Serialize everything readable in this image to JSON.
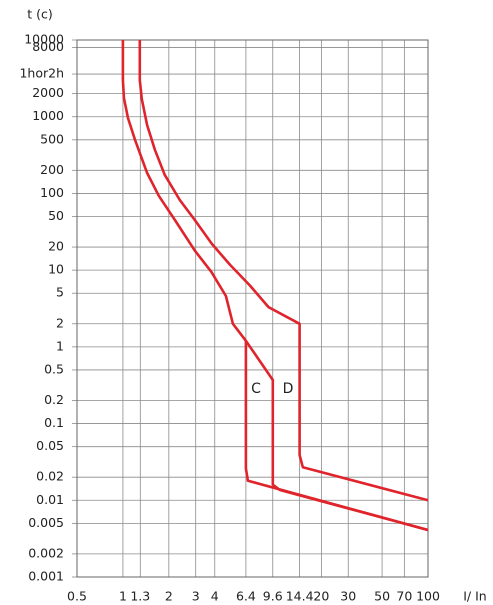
{
  "chart_data": {
    "type": "line",
    "y_label": "t (c)",
    "x_label": "I/ In",
    "log_x": true,
    "log_y": true,
    "grid": true,
    "xlim": [
      0.5,
      100
    ],
    "ylim": [
      0.001,
      10000
    ],
    "xticks": [
      0.5,
      1,
      1.3,
      2,
      3,
      4,
      6.4,
      9.6,
      14.4,
      20,
      30,
      50,
      70,
      100
    ],
    "yticks": [
      0.001,
      0.002,
      0.005,
      0.01,
      0.02,
      0.05,
      0.1,
      0.2,
      0.5,
      1,
      2,
      5,
      10,
      20,
      50,
      100,
      200,
      500,
      1000,
      2000,
      {
        "value": 3600,
        "label": "1hor2h"
      },
      8000,
      10000
    ],
    "series": [
      {
        "color": "#e0242c",
        "x": [
          1,
          1,
          1.015,
          1.08,
          1.2,
          1.44,
          1.72,
          2.19,
          2.96,
          3.8,
          4.73,
          5.26,
          6.4,
          9.6,
          9.6,
          10.7,
          100
        ],
        "y": [
          10000,
          3000,
          1760,
          960,
          500,
          185,
          93,
          45,
          18,
          9.5,
          4.6,
          2,
          1.2,
          0.37,
          0.016,
          0.0136,
          0.0041
        ]
      },
      {
        "color": "#e0242c",
        "x": [
          6.4,
          6.4,
          6.6,
          100
        ],
        "y": [
          1.2,
          0.026,
          0.018,
          0.0041
        ]
      },
      {
        "color": "#e0242c",
        "x": [
          1.29,
          1.29,
          1.33,
          1.44,
          1.62,
          1.88,
          2.36,
          2.96,
          3.83,
          5.04,
          6.8,
          9,
          14.4,
          14.4,
          15.1,
          100
        ],
        "y": [
          10000,
          3000,
          1700,
          780,
          370,
          175,
          82,
          45,
          22,
          11.7,
          6.3,
          3.3,
          2,
          0.039,
          0.027,
          0.01
        ]
      }
    ],
    "annotations": [
      "C",
      "D"
    ]
  }
}
